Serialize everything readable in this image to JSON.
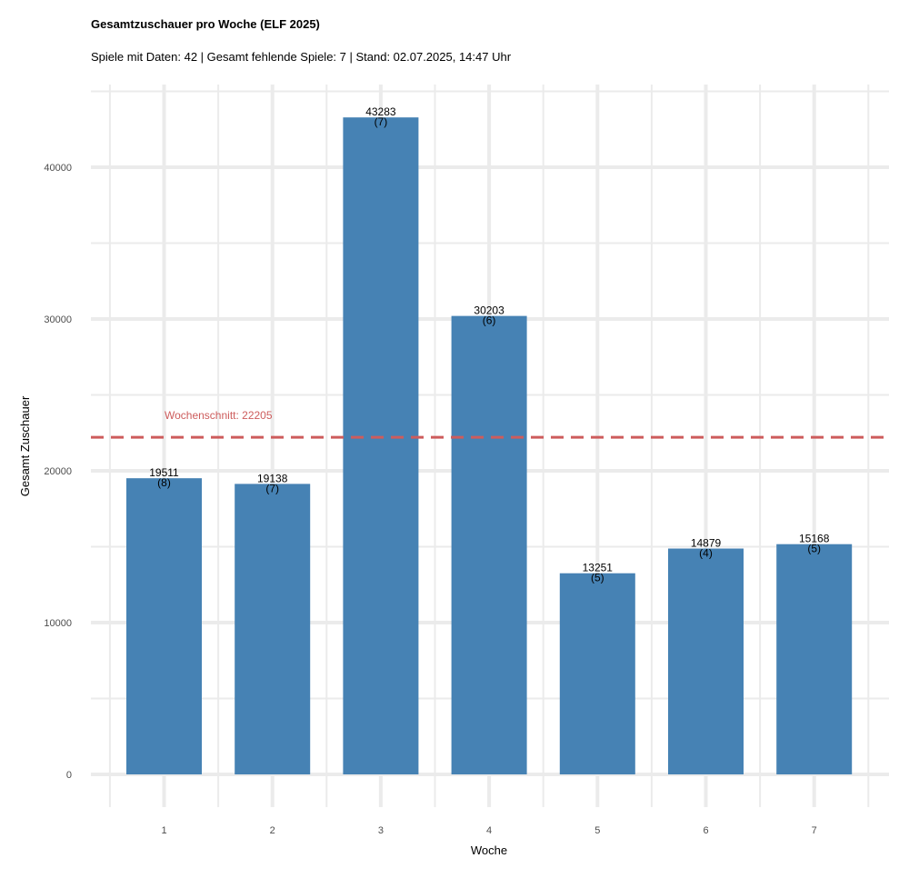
{
  "chart_data": {
    "type": "bar",
    "title": "Gesamtzuschauer pro Woche (ELF 2025)",
    "subtitle": "Spiele mit Daten: 42 | Gesamt fehlende Spiele: 7 | Stand: 02.07.2025, 14:47 Uhr",
    "xlabel": "Woche",
    "ylabel": "Gesamt Zuschauer",
    "categories": [
      "1",
      "2",
      "3",
      "4",
      "5",
      "6",
      "7"
    ],
    "values": [
      19511,
      19138,
      43283,
      30203,
      13251,
      14879,
      15168
    ],
    "games": [
      "(8)",
      "(7)",
      "(7)",
      "(6)",
      "(5)",
      "(4)",
      "(5)"
    ],
    "y_ticks": [
      "0",
      "10000",
      "20000",
      "30000",
      "40000"
    ],
    "ylim": [
      -2000,
      45000
    ],
    "grid": true,
    "mean_line": {
      "value": 22205,
      "label": "Wochenschnitt: 22205",
      "style": "dashed"
    },
    "colors": {
      "bar": "#4682B4",
      "mean": "#CD5C5C",
      "grid": "#EBEBEB"
    }
  }
}
